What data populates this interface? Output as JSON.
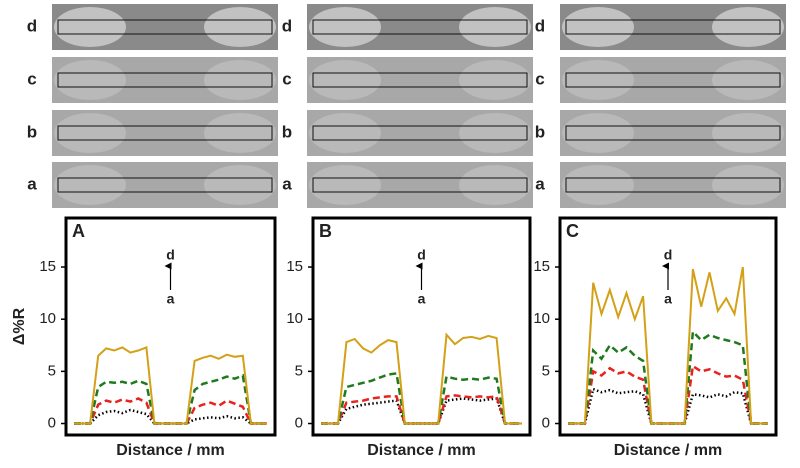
{
  "images": {
    "columns": [
      {
        "row_labels": [
          "d",
          "c",
          "b",
          "a"
        ]
      },
      {
        "row_labels": [
          "d",
          "c",
          "b",
          "a"
        ]
      },
      {
        "row_labels": [
          "d",
          "c",
          "b",
          "a"
        ]
      }
    ]
  },
  "chart_data": [
    {
      "type": "line",
      "panel_label": "A",
      "ylabel": "Δ%R",
      "xlabel": "Distance / mm",
      "annotation_top": "d",
      "annotation_bottom": "a",
      "xlim": [
        -1,
        25
      ],
      "ylim": [
        -1.1,
        19.7
      ],
      "yticks": [
        0,
        5,
        10,
        15
      ],
      "x": [
        0,
        1,
        2,
        3,
        4,
        5,
        6,
        7,
        8,
        9,
        10,
        11,
        12,
        13,
        14,
        15,
        16,
        17,
        18,
        19,
        20,
        21,
        22,
        23,
        24
      ],
      "series": [
        {
          "color": "#000000",
          "dash": "dotted",
          "values": [
            0,
            0,
            0,
            0.8,
            1.1,
            1.2,
            1.0,
            1.3,
            1.1,
            0.9,
            0,
            0,
            0,
            0,
            0,
            0.4,
            0.5,
            0.6,
            0.5,
            0.7,
            0.5,
            0.6,
            0,
            0,
            0
          ]
        },
        {
          "color": "#e8231f",
          "dash": "dashed",
          "values": [
            0,
            0,
            0,
            1.8,
            2.2,
            2.0,
            2.3,
            2.1,
            2.4,
            2.0,
            0,
            0,
            0,
            0,
            0,
            1.5,
            1.8,
            2.0,
            1.7,
            2.2,
            1.9,
            1.6,
            0,
            0,
            0
          ]
        },
        {
          "color": "#1f7a1f",
          "dash": "dashed",
          "values": [
            0,
            0,
            0,
            3.5,
            4.0,
            3.9,
            4.0,
            3.8,
            4.1,
            3.8,
            0,
            0,
            0,
            0,
            0,
            3.2,
            3.8,
            4.0,
            4.2,
            4.5,
            4.3,
            4.6,
            0,
            0,
            0
          ]
        },
        {
          "color": "#d4a017",
          "dash": "solid",
          "values": [
            0,
            0,
            0,
            6.5,
            7.2,
            7.0,
            7.3,
            6.8,
            7.0,
            7.3,
            0,
            0,
            0,
            0,
            0,
            6.0,
            6.3,
            6.5,
            6.2,
            6.6,
            6.4,
            6.5,
            0,
            0,
            0
          ]
        }
      ]
    },
    {
      "type": "line",
      "panel_label": "B",
      "xlabel": "Distance / mm",
      "annotation_top": "d",
      "annotation_bottom": "a",
      "xlim": [
        -1,
        25
      ],
      "ylim": [
        -1.1,
        19.7
      ],
      "yticks": [
        0,
        5,
        10,
        15
      ],
      "x": [
        0,
        1,
        2,
        3,
        4,
        5,
        6,
        7,
        8,
        9,
        10,
        11,
        12,
        13,
        14,
        15,
        16,
        17,
        18,
        19,
        20,
        21,
        22,
        23,
        24
      ],
      "series": [
        {
          "color": "#000000",
          "dash": "dotted",
          "values": [
            0,
            0,
            0,
            1.4,
            1.6,
            1.8,
            1.9,
            2.0,
            2.1,
            2.2,
            0,
            0,
            0,
            0,
            0,
            2.2,
            2.3,
            2.4,
            2.3,
            2.2,
            2.3,
            2.4,
            0,
            0,
            0
          ]
        },
        {
          "color": "#e8231f",
          "dash": "dashed",
          "values": [
            0,
            0,
            0,
            2.0,
            2.1,
            2.2,
            2.4,
            2.5,
            2.6,
            2.6,
            0,
            0,
            0,
            0,
            0,
            2.6,
            2.7,
            2.6,
            2.5,
            2.6,
            2.5,
            2.6,
            0,
            0,
            0
          ]
        },
        {
          "color": "#1f7a1f",
          "dash": "dashed",
          "values": [
            0,
            0,
            0,
            3.5,
            3.7,
            3.9,
            4.1,
            4.4,
            4.7,
            4.8,
            0,
            0,
            0,
            0,
            0,
            4.5,
            4.3,
            4.2,
            4.3,
            4.2,
            4.4,
            4.3,
            0,
            0,
            0
          ]
        },
        {
          "color": "#d4a017",
          "dash": "solid",
          "values": [
            0,
            0,
            0,
            7.8,
            8.1,
            7.2,
            6.8,
            7.5,
            8.0,
            7.8,
            0,
            0,
            0,
            0,
            0,
            8.5,
            7.6,
            8.2,
            8.3,
            8.1,
            8.4,
            8.2,
            0,
            0,
            0
          ]
        }
      ]
    },
    {
      "type": "line",
      "panel_label": "C",
      "xlabel": "Distance / mm",
      "annotation_top": "d",
      "annotation_bottom": "a",
      "xlim": [
        -1,
        25
      ],
      "ylim": [
        -1.1,
        19.7
      ],
      "yticks": [
        0,
        5,
        10,
        15
      ],
      "x": [
        0,
        1,
        2,
        3,
        4,
        5,
        6,
        7,
        8,
        9,
        10,
        11,
        12,
        13,
        14,
        15,
        16,
        17,
        18,
        19,
        20,
        21,
        22,
        23,
        24
      ],
      "series": [
        {
          "color": "#000000",
          "dash": "dotted",
          "values": [
            0,
            0,
            0,
            3.3,
            3.0,
            3.2,
            2.9,
            3.0,
            3.1,
            2.8,
            0,
            0,
            0,
            0,
            0,
            2.8,
            2.7,
            2.5,
            2.8,
            2.6,
            3.0,
            2.9,
            0,
            0,
            0
          ]
        },
        {
          "color": "#e8231f",
          "dash": "dashed",
          "values": [
            0,
            0,
            0,
            5.0,
            4.6,
            5.3,
            4.8,
            5.0,
            4.5,
            4.2,
            0,
            0,
            0,
            0,
            0,
            5.5,
            5.0,
            5.2,
            4.8,
            4.5,
            4.6,
            4.2,
            0,
            0,
            0
          ]
        },
        {
          "color": "#1f7a1f",
          "dash": "dashed",
          "values": [
            0,
            0,
            0,
            7.0,
            6.2,
            7.5,
            6.8,
            7.3,
            6.5,
            6.0,
            0,
            0,
            0,
            0,
            0,
            8.8,
            8.0,
            8.5,
            8.2,
            8.0,
            7.8,
            7.5,
            0,
            0,
            0
          ]
        },
        {
          "color": "#d4a017",
          "dash": "solid",
          "values": [
            0,
            0,
            0,
            13.5,
            10.5,
            12.8,
            10.2,
            12.5,
            10.0,
            12.2,
            0,
            0,
            0,
            0,
            0,
            14.8,
            11.2,
            14.5,
            10.8,
            12.0,
            10.5,
            15.0,
            0,
            0,
            0
          ]
        }
      ]
    }
  ]
}
